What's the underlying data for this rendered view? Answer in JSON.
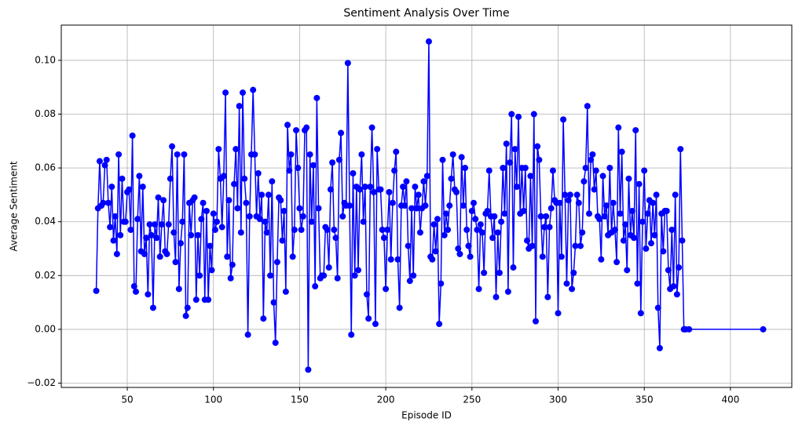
{
  "chart_data": {
    "type": "line",
    "title": "Sentiment Analysis Over Time",
    "x_label": "Episode ID",
    "y_label": "Average Sentiment",
    "color": "#0000ff",
    "grid": true,
    "xlim": [
      11.7,
      435.6
    ],
    "ylim": [
      -0.0216,
      0.1131
    ],
    "xticks": [
      50,
      100,
      150,
      200,
      250,
      300,
      350,
      400
    ],
    "yticks": [
      {
        "value": -0.02,
        "label": "−0.02"
      },
      {
        "value": 0,
        "label": "0.00"
      },
      {
        "value": 0.02,
        "label": "0.02"
      },
      {
        "value": 0.04,
        "label": "0.04"
      },
      {
        "value": 0.06,
        "label": "0.06"
      },
      {
        "value": 0.08,
        "label": "0.08"
      },
      {
        "value": 0.1,
        "label": "0.10"
      }
    ],
    "x": [
      32,
      33,
      34,
      35,
      36,
      37,
      38,
      39,
      40,
      41,
      42,
      43,
      44,
      45,
      46,
      47,
      48,
      49,
      50,
      51,
      52,
      53,
      54,
      55,
      56,
      57,
      58,
      59,
      60,
      61,
      62,
      63,
      64,
      65,
      66,
      67,
      68,
      69,
      70,
      71,
      72,
      73,
      74,
      75,
      76,
      77,
      78,
      79,
      80,
      81,
      82,
      83,
      84,
      85,
      86,
      87,
      88,
      89,
      90,
      91,
      92,
      93,
      94,
      95,
      96,
      97,
      98,
      99,
      100,
      101,
      102,
      103,
      104,
      105,
      106,
      107,
      108,
      109,
      110,
      111,
      112,
      113,
      114,
      115,
      116,
      117,
      118,
      119,
      120,
      121,
      122,
      123,
      124,
      125,
      126,
      127,
      128,
      129,
      130,
      131,
      132,
      133,
      134,
      135,
      136,
      137,
      138,
      139,
      140,
      141,
      142,
      143,
      144,
      145,
      146,
      147,
      148,
      149,
      150,
      151,
      152,
      153,
      154,
      155,
      156,
      157,
      158,
      159,
      160,
      161,
      162,
      163,
      164,
      165,
      166,
      167,
      168,
      169,
      170,
      171,
      172,
      173,
      174,
      175,
      176,
      177,
      178,
      179,
      180,
      181,
      182,
      183,
      184,
      185,
      186,
      187,
      188,
      189,
      190,
      191,
      192,
      193,
      194,
      195,
      196,
      197,
      198,
      199,
      200,
      201,
      202,
      203,
      204,
      205,
      206,
      207,
      208,
      209,
      210,
      211,
      212,
      213,
      214,
      215,
      216,
      217,
      218,
      219,
      220,
      221,
      222,
      223,
      224,
      225,
      226,
      227,
      228,
      229,
      230,
      231,
      232,
      233,
      234,
      235,
      236,
      237,
      238,
      239,
      240,
      241,
      242,
      243,
      244,
      245,
      246,
      247,
      248,
      249,
      250,
      251,
      252,
      253,
      254,
      255,
      256,
      257,
      258,
      259,
      260,
      261,
      262,
      263,
      264,
      265,
      266,
      267,
      268,
      269,
      270,
      271,
      272,
      273,
      274,
      275,
      276,
      277,
      278,
      279,
      280,
      281,
      282,
      283,
      284,
      285,
      286,
      287,
      288,
      289,
      290,
      291,
      292,
      293,
      294,
      295,
      296,
      297,
      298,
      299,
      300,
      301,
      302,
      303,
      304,
      305,
      306,
      307,
      308,
      309,
      310,
      311,
      312,
      313,
      314,
      315,
      316,
      317,
      318,
      319,
      320,
      321,
      322,
      323,
      324,
      325,
      326,
      327,
      328,
      329,
      330,
      331,
      332,
      333,
      334,
      335,
      336,
      337,
      338,
      339,
      340,
      341,
      342,
      343,
      344,
      345,
      346,
      347,
      348,
      349,
      350,
      351,
      352,
      353,
      354,
      355,
      356,
      357,
      358,
      359,
      360,
      361,
      362,
      363,
      364,
      365,
      366,
      367,
      368,
      369,
      370,
      371,
      372,
      373,
      374,
      376,
      419
    ],
    "values": [
      0.0143,
      0.045,
      0.0625,
      0.046,
      0.047,
      0.061,
      0.063,
      0.047,
      0.038,
      0.053,
      0.033,
      0.042,
      0.028,
      0.065,
      0.035,
      0.056,
      0.04,
      0.04,
      0.051,
      0.052,
      0.037,
      0.072,
      0.016,
      0.014,
      0.041,
      0.057,
      0.029,
      0.053,
      0.028,
      0.034,
      0.013,
      0.039,
      0.035,
      0.008,
      0.039,
      0.034,
      0.049,
      0.027,
      0.039,
      0.048,
      0.029,
      0.028,
      0.039,
      0.056,
      0.068,
      0.036,
      0.025,
      0.065,
      0.015,
      0.032,
      0.04,
      0.065,
      0.005,
      0.008,
      0.047,
      0.035,
      0.048,
      0.049,
      0.011,
      0.035,
      0.02,
      0.041,
      0.047,
      0.011,
      0.044,
      0.011,
      0.031,
      0.022,
      0.043,
      0.037,
      0.04,
      0.067,
      0.056,
      0.038,
      0.057,
      0.088,
      0.027,
      0.048,
      0.019,
      0.024,
      0.054,
      0.067,
      0.045,
      0.083,
      0.036,
      0.088,
      0.056,
      0.047,
      -0.002,
      0.042,
      0.065,
      0.089,
      0.065,
      0.042,
      0.058,
      0.041,
      0.05,
      0.004,
      0.04,
      0.036,
      0.05,
      0.02,
      0.055,
      0.01,
      -0.005,
      0.025,
      0.049,
      0.048,
      0.033,
      0.044,
      0.014,
      0.076,
      0.059,
      0.065,
      0.027,
      0.037,
      0.074,
      0.06,
      0.045,
      0.037,
      0.042,
      0.074,
      0.075,
      -0.015,
      0.065,
      0.04,
      0.061,
      0.016,
      0.086,
      0.045,
      0.019,
      0.02,
      0.02,
      0.038,
      0.037,
      0.023,
      0.052,
      0.062,
      0.037,
      0.034,
      0.019,
      0.063,
      0.073,
      0.042,
      0.047,
      0.046,
      0.099,
      0.046,
      -0.002,
      0.058,
      0.02,
      0.053,
      0.022,
      0.052,
      0.065,
      0.04,
      0.053,
      0.013,
      0.004,
      0.053,
      0.075,
      0.051,
      0.002,
      0.067,
      0.052,
      0.052,
      0.037,
      0.034,
      0.015,
      0.037,
      0.051,
      0.026,
      0.047,
      0.059,
      0.066,
      0.026,
      0.008,
      0.046,
      0.053,
      0.046,
      0.055,
      0.031,
      0.018,
      0.045,
      0.02,
      0.053,
      0.045,
      0.05,
      0.036,
      0.045,
      0.055,
      0.046,
      0.057,
      0.107,
      0.027,
      0.026,
      0.039,
      0.029,
      0.041,
      0.002,
      0.017,
      0.063,
      0.035,
      0.043,
      0.037,
      0.046,
      0.056,
      0.065,
      0.052,
      0.051,
      0.03,
      0.028,
      0.064,
      0.046,
      0.06,
      0.037,
      0.031,
      0.027,
      0.044,
      0.047,
      0.041,
      0.037,
      0.015,
      0.039,
      0.036,
      0.021,
      0.043,
      0.044,
      0.059,
      0.042,
      0.034,
      0.042,
      0.012,
      0.036,
      0.021,
      0.04,
      0.06,
      0.043,
      0.069,
      0.014,
      0.062,
      0.08,
      0.023,
      0.067,
      0.053,
      0.079,
      0.043,
      0.06,
      0.044,
      0.06,
      0.033,
      0.03,
      0.057,
      0.031,
      0.08,
      0.003,
      0.068,
      0.063,
      0.042,
      0.027,
      0.038,
      0.042,
      0.012,
      0.038,
      0.045,
      0.059,
      0.048,
      0.047,
      0.006,
      0.047,
      0.027,
      0.078,
      0.05,
      0.017,
      0.048,
      0.05,
      0.015,
      0.021,
      0.031,
      0.05,
      0.047,
      0.031,
      0.036,
      0.055,
      0.06,
      0.083,
      0.043,
      0.063,
      0.065,
      0.052,
      0.059,
      0.042,
      0.041,
      0.026,
      0.057,
      0.042,
      0.046,
      0.035,
      0.06,
      0.036,
      0.047,
      0.037,
      0.025,
      0.075,
      0.043,
      0.066,
      0.033,
      0.039,
      0.022,
      0.056,
      0.035,
      0.044,
      0.034,
      0.074,
      0.017,
      0.054,
      0.006,
      0.04,
      0.059,
      0.03,
      0.043,
      0.048,
      0.032,
      0.047,
      0.035,
      0.05,
      0.008,
      -0.007,
      0.043,
      0.029,
      0.044,
      0.044,
      0.022,
      0.015,
      0.037,
      0.016,
      0.05,
      0.013,
      0.023,
      0.067,
      0.033,
      0,
      0,
      0,
      0
    ]
  }
}
